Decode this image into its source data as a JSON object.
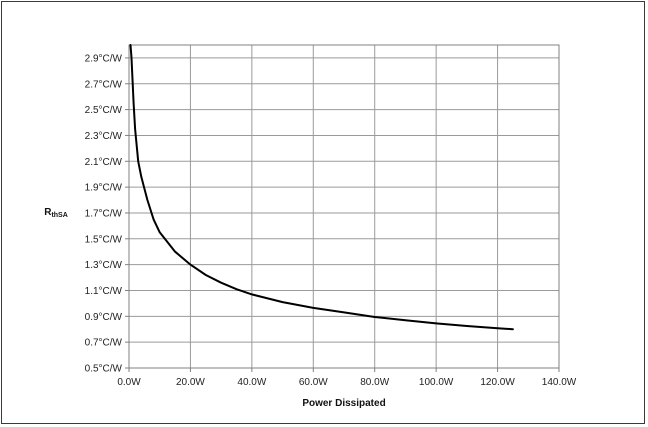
{
  "chart_data": {
    "type": "line",
    "title": "",
    "xlabel": "Power Dissipated",
    "ylabel_main": "R",
    "ylabel_sub": "thSA",
    "xlim": [
      0,
      140
    ],
    "ylim": [
      0.5,
      3.0
    ],
    "grid": true,
    "x_ticks": [
      0,
      20,
      40,
      60,
      80,
      100,
      120,
      140
    ],
    "x_tick_labels": [
      "0.0W",
      "20.0W",
      "40.0W",
      "60.0W",
      "80.0W",
      "100.0W",
      "120.0W",
      "140.0W"
    ],
    "y_ticks": [
      0.5,
      0.7,
      0.9,
      1.1,
      1.3,
      1.5,
      1.7,
      1.9,
      2.1,
      2.3,
      2.5,
      2.7,
      2.9
    ],
    "y_tick_labels": [
      "0.5°C/W",
      "0.7°C/W",
      "0.9°C/W",
      "1.1°C/W",
      "1.3°C/W",
      "1.5°C/W",
      "1.7°C/W",
      "1.9°C/W",
      "2.1°C/W",
      "2.3°C/W",
      "2.5°C/W",
      "2.7°C/W",
      "2.9°C/W"
    ],
    "series": [
      {
        "color": "#000000",
        "x": [
          0.5,
          0.8,
          1,
          1.5,
          2,
          3,
          4,
          6,
          8,
          10,
          15,
          20,
          25,
          30,
          35,
          40,
          50,
          60,
          70,
          80,
          90,
          100,
          110,
          120,
          125
        ],
        "y": [
          3.0,
          2.9,
          2.8,
          2.55,
          2.35,
          2.1,
          1.98,
          1.8,
          1.65,
          1.55,
          1.4,
          1.3,
          1.22,
          1.16,
          1.11,
          1.07,
          1.01,
          0.965,
          0.93,
          0.895,
          0.87,
          0.845,
          0.825,
          0.808,
          0.8
        ]
      }
    ]
  }
}
